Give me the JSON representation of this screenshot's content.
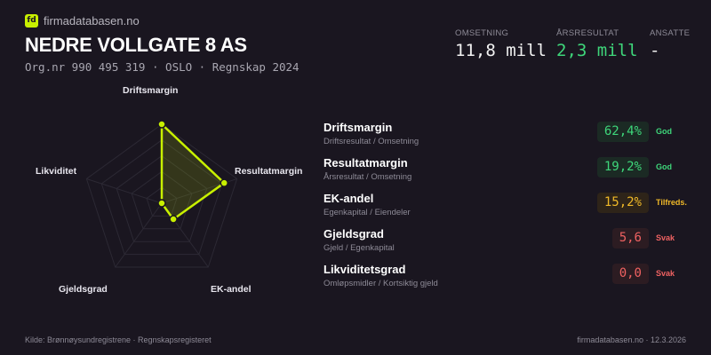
{
  "brand": {
    "logo": "fd",
    "site": "firmadatabasen.no",
    "accent": "#c8f000"
  },
  "company": {
    "name": "NEDRE VOLLGATE  8 AS",
    "subline": "Org.nr 990 495 319  ·  OSLO  ·  Regnskap 2024"
  },
  "stats": [
    {
      "label": "OMSETNING",
      "value": "11,8 mill",
      "color": "#f2f2f2"
    },
    {
      "label": "ÅRSRESULTAT",
      "value": "2,3 mill",
      "color": "#3ed67a"
    },
    {
      "label": "ANSATTE",
      "value": "-",
      "color": "#f2f2f2"
    }
  ],
  "chart_data": {
    "type": "radar",
    "axes": [
      "Driftsmargin",
      "Resultatmargin",
      "EK-andel",
      "Gjeldsgrad",
      "Likviditet"
    ],
    "values": [
      1.0,
      0.83,
      0.25,
      0,
      0
    ],
    "range": [
      0,
      1
    ],
    "grid_levels": 5
  },
  "metrics": [
    {
      "title": "Driftsmargin",
      "formula": "Driftsresultat / Omsetning",
      "value": "62,4%",
      "status": "God",
      "color": "#3ed67a",
      "bg": "#1b2a24"
    },
    {
      "title": "Resultatmargin",
      "formula": "Årsresultat / Omsetning",
      "value": "19,2%",
      "status": "God",
      "color": "#3ed67a",
      "bg": "#1b2a24"
    },
    {
      "title": "EK-andel",
      "formula": "Egenkapital / Eiendeler",
      "value": "15,2%",
      "status": "Tilfreds.",
      "color": "#f0b928",
      "bg": "#2e2419"
    },
    {
      "title": "Gjeldsgrad",
      "formula": "Gjeld / Egenkapital",
      "value": "5,6",
      "status": "Svak",
      "color": "#f06262",
      "bg": "#2c1c22"
    },
    {
      "title": "Likviditetsgrad",
      "formula": "Omløpsmidler / Kortsiktig gjeld",
      "value": "0,0",
      "status": "Svak",
      "color": "#f06262",
      "bg": "#2c1c22"
    }
  ],
  "footer": {
    "source": "Kilde: Brønnøysundregistrene · Regnskapsregisteret",
    "right": "firmadatabasen.no · 12.3.2026"
  }
}
